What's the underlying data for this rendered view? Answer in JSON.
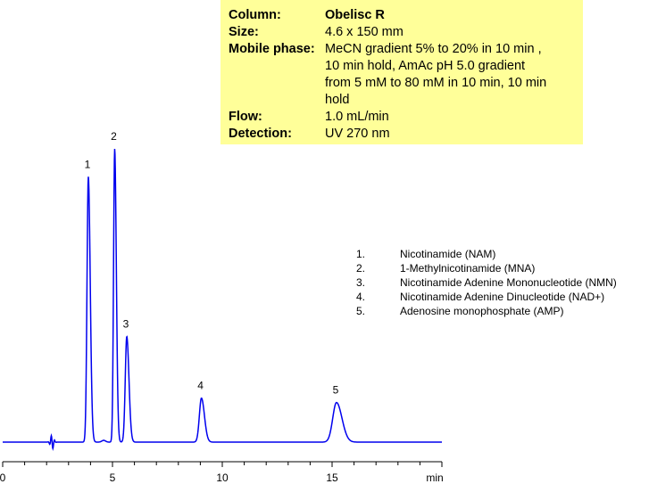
{
  "info": {
    "rows": [
      {
        "label": "Column:",
        "value": "Obelisc R",
        "bold": true
      },
      {
        "label": "Size:",
        "value": "4.6 x 150 mm"
      },
      {
        "label": "Mobile phase:",
        "value": "MeCN gradient 5% to 20% in 10 min ,"
      },
      {
        "label": "",
        "value": "10 min hold, AmAc pH 5.0 gradient"
      },
      {
        "label": "",
        "value": "from 5 mM to 80 mM in 10 min, 10 min"
      },
      {
        "label": "",
        "value": "hold"
      },
      {
        "label": "Flow:",
        "value": "1.0 mL/min"
      },
      {
        "label": "Detection:",
        "value": "UV 270 nm"
      }
    ]
  },
  "legend": [
    {
      "num": "1.",
      "name": "Nicotinamide (NAM)"
    },
    {
      "num": "2.",
      "name": "1-Methylnicotinamide (MNA)"
    },
    {
      "num": "3.",
      "name": "Nicotinamide Adenine Mononucleotide (NMN)"
    },
    {
      "num": "4.",
      "name": "Nicotinamide Adenine Dinucleotide (NAD+)"
    },
    {
      "num": "5.",
      "name": "Adenosine monophosphate (AMP)"
    }
  ],
  "chart_data": {
    "type": "line",
    "x_unit_label": "min",
    "xlim": [
      0,
      20
    ],
    "x_ticks": [
      0,
      5,
      10,
      15
    ],
    "minor_tick_step": 1,
    "grid": false,
    "line_color": "#0000ee",
    "baseline": 0,
    "peaks": [
      {
        "label": "1",
        "rt": 3.9,
        "height": 0.905,
        "width": 0.07
      },
      {
        "label": "2",
        "rt": 5.1,
        "height": 1.0,
        "width": 0.06
      },
      {
        "label": "3",
        "rt": 5.65,
        "height": 0.36,
        "width": 0.08
      },
      {
        "label": "4",
        "rt": 9.05,
        "height": 0.15,
        "width": 0.11
      },
      {
        "label": "5",
        "rt": 15.2,
        "height": 0.135,
        "width": 0.2
      }
    ],
    "disturbance_rt": 2.25
  }
}
